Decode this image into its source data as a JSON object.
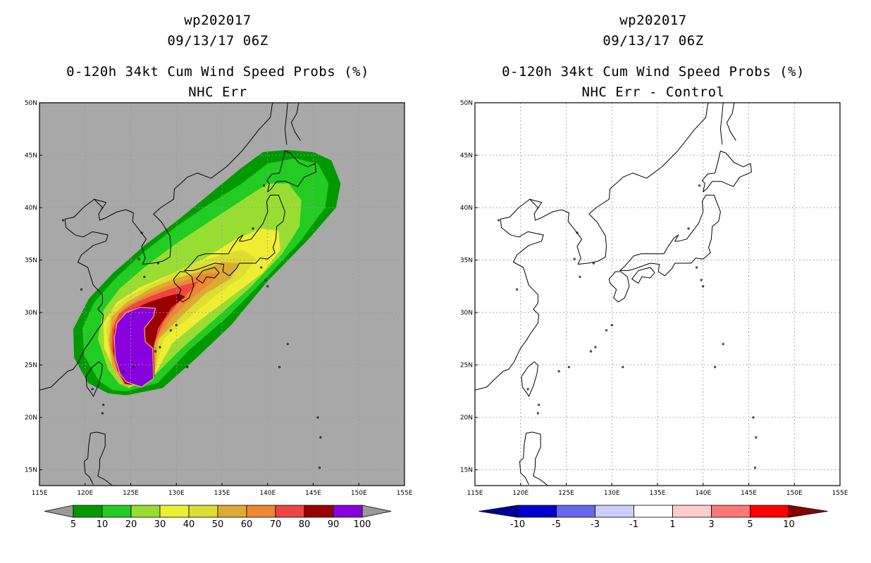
{
  "panels": [
    {
      "storm": "wp202017",
      "datetime": "09/13/17 06Z",
      "product": "0-120h 34kt Cum Wind Speed Probs (%)",
      "subtitle": "NHC Err",
      "background": "#a8a8a8",
      "colorbar": {
        "labels": [
          "5",
          "10",
          "20",
          "30",
          "40",
          "50",
          "60",
          "70",
          "80",
          "90",
          "100"
        ],
        "colors": [
          "#009900",
          "#22cc22",
          "#99dd33",
          "#eeee33",
          "#dddd33",
          "#ddaa33",
          "#ee8833",
          "#ee4444",
          "#990000",
          "#8800dd"
        ],
        "low_arrow": "#999999",
        "high_arrow": "#999999"
      },
      "probability_bands": [
        {
          "level": "5",
          "color": "#009900"
        },
        {
          "level": "10",
          "color": "#22cc22"
        },
        {
          "level": "20",
          "color": "#99dd33"
        },
        {
          "level": "30",
          "color": "#eeee33"
        },
        {
          "level": "40",
          "color": "#dddd33"
        },
        {
          "level": "50",
          "color": "#ddaa33"
        },
        {
          "level": "60",
          "color": "#ee8833"
        },
        {
          "level": "70",
          "color": "#ee4444"
        },
        {
          "level": "80",
          "color": "#990000"
        },
        {
          "level": "90",
          "color": "#8800dd"
        }
      ]
    },
    {
      "storm": "wp202017",
      "datetime": "09/13/17 06Z",
      "product": "0-120h 34kt Cum Wind Speed Probs (%)",
      "subtitle": "NHC Err - Control",
      "background": "#ffffff",
      "colorbar": {
        "labels": [
          "-10",
          "-5",
          "-3",
          "-1",
          "1",
          "3",
          "5",
          "10"
        ],
        "colors": [
          "#0000cc",
          "#6666ee",
          "#ccccff",
          "#ffffff",
          "#ffcccc",
          "#ff7777",
          "#ff0000"
        ],
        "low_arrow": "#000099",
        "high_arrow": "#880000"
      },
      "probability_bands": []
    }
  ],
  "map": {
    "lon_labels": [
      "115E",
      "120E",
      "125E",
      "130E",
      "135E",
      "140E",
      "145E",
      "150E",
      "155E"
    ],
    "lat_labels": [
      "50N",
      "45N",
      "40N",
      "35N",
      "30N",
      "25N",
      "20N",
      "15N"
    ],
    "lon_range": [
      115,
      155
    ],
    "lat_range": [
      13.5,
      50
    ]
  }
}
